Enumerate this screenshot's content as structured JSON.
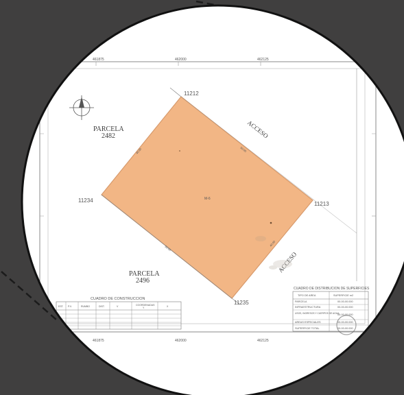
{
  "map": {
    "parcels": [
      {
        "name": "PARCELA",
        "number": "2482"
      },
      {
        "name": "PARCELA",
        "number": "2496"
      }
    ],
    "lot_label": "M-6",
    "access": [
      "ACCESO",
      "ACCESO"
    ],
    "vertices": [
      "11212",
      "11213",
      "11234",
      "11235"
    ],
    "edge_lengths": [
      "50.00",
      "40.00",
      "50.00",
      "40.00"
    ],
    "lot_fill": "#f2b685",
    "lot_stroke": "#d79a6c",
    "background": "#403f3f",
    "paper": "#ffffff",
    "grid_ticks": [
      "461875",
      "462000",
      "462125",
      "461875",
      "462000",
      "462125"
    ]
  },
  "construction_table": {
    "title": "CUADRO DE CONSTRUCCION",
    "headers": [
      "EST.",
      "P.V.",
      "RUMBO",
      "DIST.",
      "V",
      "COORDENADAS",
      "Y",
      "X"
    ]
  },
  "area_table": {
    "title": "CUADRO DE DISTRIBUCION DE SUPERFICIES",
    "headers": [
      "TIPO DE AREA",
      "SUPERFICIE m2"
    ],
    "rows": [
      {
        "label": "PARCELA",
        "value": "00-00-00.000"
      },
      {
        "label": "INFRAESTRUCTURA",
        "value": "00-00-00.000"
      },
      {
        "label": "USOS, INGRESOS Y CUERPOS DE AGUA",
        "value": "00-00-00.000"
      },
      {
        "label": "AREAS ESPECIALES",
        "value": "00-00-00.000"
      },
      {
        "label": "SUPERFICIE TOTAL",
        "value": "00-00-00.000"
      }
    ]
  }
}
